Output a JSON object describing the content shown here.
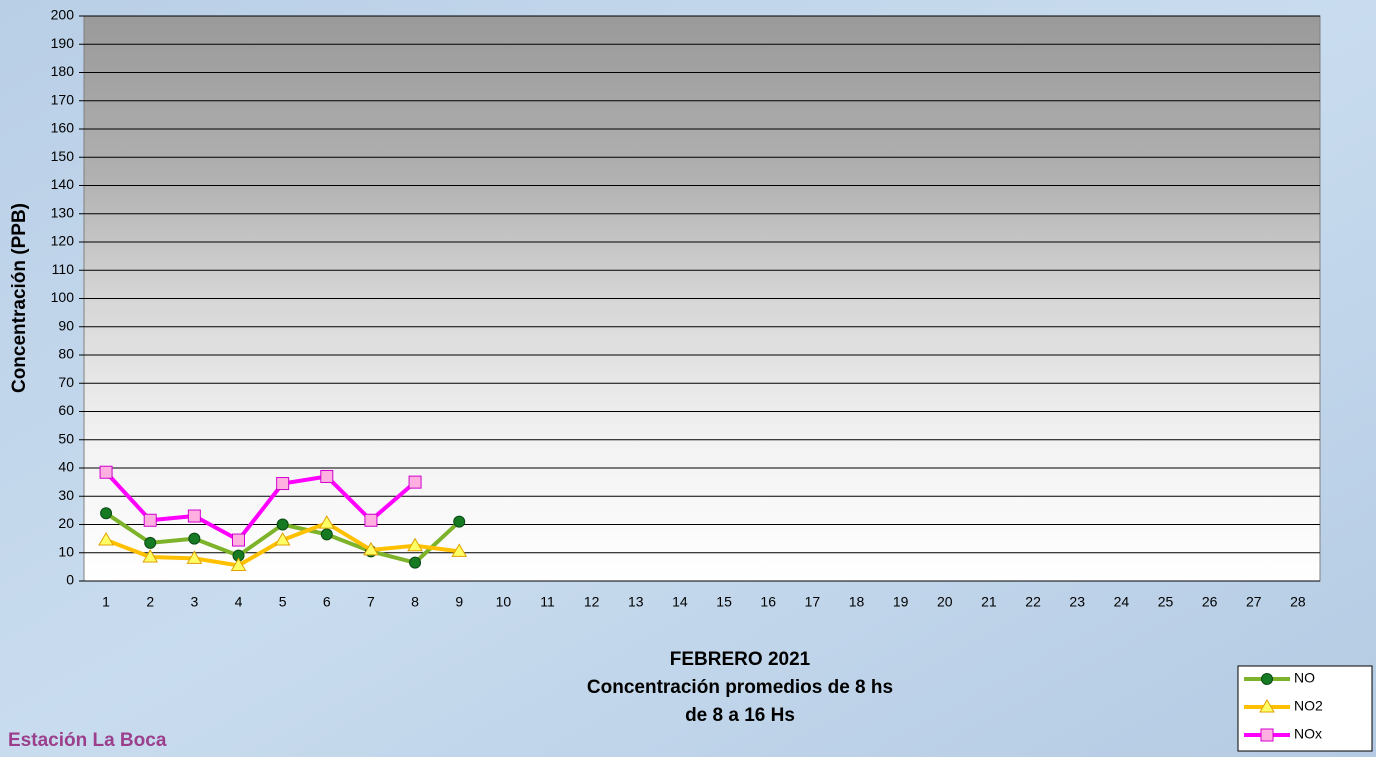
{
  "chart_data": {
    "type": "line",
    "title": "FEBRERO 2021",
    "subtitle": "Concentración promedios de 8 hs",
    "subtitle2": "de 8 a 16 Hs",
    "station": "Estación La Boca",
    "y_label": "Concentración (PPB)",
    "categories": [
      "1",
      "2",
      "3",
      "4",
      "5",
      "6",
      "7",
      "8",
      "9",
      "10",
      "11",
      "12",
      "13",
      "14",
      "15",
      "16",
      "17",
      "18",
      "19",
      "20",
      "21",
      "22",
      "23",
      "24",
      "25",
      "26",
      "27",
      "28"
    ],
    "series": [
      {
        "name": "NO",
        "color": "#7db32a",
        "marker": "circle",
        "marker_color": "#157a22",
        "values": [
          24,
          13.5,
          15,
          9,
          20,
          16.5,
          10.5,
          6.5,
          21,
          null,
          null,
          null,
          null,
          null,
          null,
          null,
          null,
          null,
          null,
          null,
          null,
          null,
          null,
          null,
          null,
          null,
          null,
          null
        ]
      },
      {
        "name": "NO2",
        "color": "#ffc000",
        "marker": "triangle",
        "marker_color": "#ffff66",
        "values": [
          14.5,
          8.5,
          8,
          5.5,
          14.5,
          20.5,
          11,
          12.5,
          10.5,
          null,
          null,
          null,
          null,
          null,
          null,
          null,
          null,
          null,
          null,
          null,
          null,
          null,
          null,
          null,
          null,
          null,
          null,
          null
        ]
      },
      {
        "name": "NOx",
        "color": "#ff00ff",
        "marker": "square",
        "marker_color": "#ffb0e0",
        "values": [
          38.5,
          21.5,
          23,
          14.5,
          34.5,
          37,
          21.5,
          35,
          null,
          null,
          null,
          null,
          null,
          null,
          null,
          null,
          null,
          null,
          null,
          null,
          null,
          null,
          null,
          null,
          null,
          null,
          null,
          null
        ]
      }
    ],
    "ylim": [
      0,
      200
    ],
    "yticks": [
      0,
      10,
      20,
      30,
      40,
      50,
      60,
      70,
      80,
      90,
      100,
      110,
      120,
      130,
      140,
      150,
      160,
      170,
      180,
      190,
      200
    ],
    "grid": true,
    "legend": "bottom-right"
  }
}
